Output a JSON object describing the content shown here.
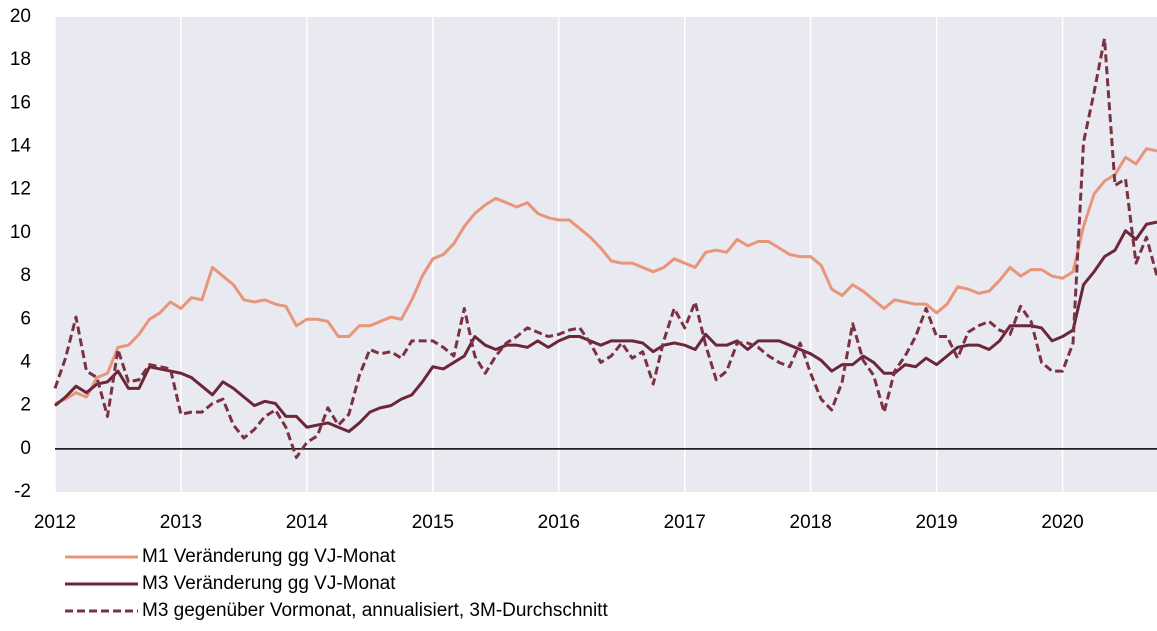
{
  "chart_data": {
    "type": "line",
    "categories": [
      "2012",
      null,
      null,
      null,
      null,
      null,
      null,
      null,
      null,
      null,
      null,
      null,
      "2013",
      null,
      null,
      null,
      null,
      null,
      null,
      null,
      null,
      null,
      null,
      null,
      "2014",
      null,
      null,
      null,
      null,
      null,
      null,
      null,
      null,
      null,
      null,
      null,
      "2015",
      null,
      null,
      null,
      null,
      null,
      null,
      null,
      null,
      null,
      null,
      null,
      "2016",
      null,
      null,
      null,
      null,
      null,
      null,
      null,
      null,
      null,
      null,
      null,
      "2017",
      null,
      null,
      null,
      null,
      null,
      null,
      null,
      null,
      null,
      null,
      null,
      "2018",
      null,
      null,
      null,
      null,
      null,
      null,
      null,
      null,
      null,
      null,
      null,
      "2019",
      null,
      null,
      null,
      null,
      null,
      null,
      null,
      null,
      null,
      null,
      null,
      "2020",
      null,
      null,
      null,
      null,
      null,
      null,
      null,
      null,
      null
    ],
    "series": [
      {
        "name": "M1 Veränderung gg VJ-Monat",
        "color": "#e8967a",
        "style": "solid",
        "values": [
          2.1,
          2.3,
          2.6,
          2.4,
          3.3,
          3.5,
          4.7,
          4.8,
          5.3,
          6.0,
          6.3,
          6.8,
          6.5,
          7.0,
          6.9,
          8.4,
          8.0,
          7.6,
          6.9,
          6.8,
          6.9,
          6.7,
          6.6,
          5.7,
          6.0,
          6.0,
          5.9,
          5.2,
          5.2,
          5.7,
          5.7,
          5.9,
          6.1,
          6.0,
          6.9,
          8.0,
          8.8,
          9.0,
          9.5,
          10.3,
          10.9,
          11.3,
          11.6,
          11.4,
          11.2,
          11.4,
          10.9,
          10.7,
          10.6,
          10.6,
          10.2,
          9.8,
          9.3,
          8.7,
          8.6,
          8.6,
          8.4,
          8.2,
          8.4,
          8.8,
          8.6,
          8.4,
          9.1,
          9.2,
          9.1,
          9.7,
          9.4,
          9.6,
          9.6,
          9.3,
          9.0,
          8.9,
          8.9,
          8.5,
          7.4,
          7.1,
          7.6,
          7.3,
          6.9,
          6.5,
          6.9,
          6.8,
          6.7,
          6.7,
          6.3,
          6.7,
          7.5,
          7.4,
          7.2,
          7.3,
          7.8,
          8.4,
          8.0,
          8.3,
          8.3,
          8.0,
          7.9,
          8.2,
          10.3,
          11.8,
          12.4,
          12.7,
          13.5,
          13.2,
          13.9,
          13.8
        ]
      },
      {
        "name": "M3 Veränderung gg VJ-Monat",
        "color": "#6b2737",
        "style": "solid",
        "values": [
          2.0,
          2.4,
          2.9,
          2.6,
          3.0,
          3.1,
          3.6,
          2.8,
          2.8,
          3.8,
          3.7,
          3.6,
          3.5,
          3.3,
          2.9,
          2.5,
          3.1,
          2.8,
          2.4,
          2.0,
          2.2,
          2.1,
          1.5,
          1.5,
          1.0,
          1.1,
          1.2,
          1.0,
          0.8,
          1.2,
          1.7,
          1.9,
          2.0,
          2.3,
          2.5,
          3.1,
          3.8,
          3.7,
          4.0,
          4.3,
          5.2,
          4.8,
          4.6,
          4.8,
          4.8,
          4.7,
          5.0,
          4.7,
          5.0,
          5.2,
          5.2,
          5.0,
          4.8,
          5.0,
          5.0,
          5.0,
          4.9,
          4.5,
          4.8,
          4.9,
          4.8,
          4.6,
          5.3,
          4.8,
          4.8,
          5.0,
          4.6,
          5.0,
          5.0,
          5.0,
          4.8,
          4.6,
          4.4,
          4.1,
          3.6,
          3.9,
          3.9,
          4.3,
          4.0,
          3.5,
          3.5,
          3.9,
          3.8,
          4.2,
          3.9,
          4.3,
          4.7,
          4.8,
          4.8,
          4.6,
          5.0,
          5.7,
          5.7,
          5.7,
          5.6,
          5.0,
          5.2,
          5.5,
          7.6,
          8.2,
          8.9,
          9.2,
          10.1,
          9.7,
          10.4,
          10.5
        ]
      },
      {
        "name": "M3 gegenüber Vormonat, annualisiert, 3M-Durchschnitt",
        "color": "#7b3142",
        "style": "dashed",
        "values": [
          2.8,
          4.2,
          6.1,
          3.6,
          3.3,
          1.5,
          4.6,
          3.1,
          3.2,
          3.9,
          3.8,
          3.7,
          1.6,
          1.7,
          1.7,
          2.1,
          2.3,
          1.1,
          0.5,
          0.9,
          1.5,
          1.8,
          1.0,
          -0.4,
          0.3,
          0.6,
          1.9,
          1.1,
          1.6,
          3.4,
          4.6,
          4.4,
          4.5,
          4.2,
          5.0,
          5.0,
          5.0,
          4.7,
          4.3,
          6.5,
          4.3,
          3.5,
          4.3,
          4.9,
          5.2,
          5.6,
          5.4,
          5.2,
          5.3,
          5.5,
          5.6,
          4.9,
          4.0,
          4.3,
          4.9,
          4.2,
          4.5,
          3.0,
          5.0,
          6.5,
          5.6,
          6.8,
          4.8,
          3.2,
          3.6,
          4.9,
          4.9,
          4.7,
          4.3,
          4.0,
          3.8,
          4.9,
          3.5,
          2.3,
          1.8,
          3.1,
          5.8,
          4.1,
          3.4,
          1.7,
          3.6,
          4.3,
          5.2,
          6.5,
          5.2,
          5.2,
          4.2,
          5.4,
          5.7,
          5.9,
          5.5,
          5.3,
          6.6,
          5.9,
          4.0,
          3.6,
          3.6,
          4.9,
          14.2,
          16.5,
          19.0,
          12.2,
          12.5,
          8.6,
          9.8,
          8.0
        ]
      }
    ],
    "ylim": [
      -2,
      20
    ],
    "yticks": [
      -2,
      0,
      2,
      4,
      6,
      8,
      10,
      12,
      14,
      16,
      18,
      20
    ],
    "grid": "x",
    "legend": "bottom"
  }
}
